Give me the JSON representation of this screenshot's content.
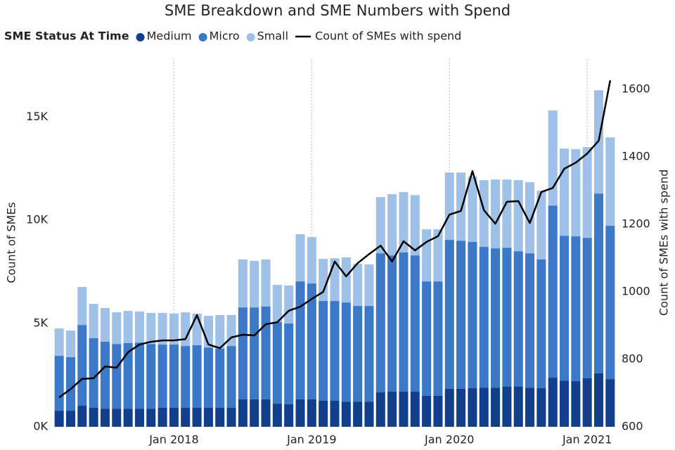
{
  "chart_data": {
    "type": "bar",
    "stacked": true,
    "title": "SME Breakdown and SME Numbers with Spend",
    "legend_title": "SME Status At Time",
    "ylabel": "Count of SMEs",
    "y2label": "Count of SMEs with spend",
    "x": [
      "2017-03",
      "2017-04",
      "2017-05",
      "2017-06",
      "2017-07",
      "2017-08",
      "2017-09",
      "2017-10",
      "2017-11",
      "2017-12",
      "2018-01",
      "2018-02",
      "2018-03",
      "2018-04",
      "2018-05",
      "2018-06",
      "2018-07",
      "2018-08",
      "2018-09",
      "2018-10",
      "2018-11",
      "2018-12",
      "2019-01",
      "2019-02",
      "2019-03",
      "2019-04",
      "2019-05",
      "2019-06",
      "2019-07",
      "2019-08",
      "2019-09",
      "2019-10",
      "2019-11",
      "2019-12",
      "2020-01",
      "2020-02",
      "2020-03",
      "2020-04",
      "2020-05",
      "2020-06",
      "2020-07",
      "2020-08",
      "2020-09",
      "2020-10",
      "2020-11",
      "2020-12",
      "2021-01",
      "2021-02",
      "2021-03"
    ],
    "xticks": [
      {
        "value": "2018-01",
        "label": "Jan 2018"
      },
      {
        "value": "2019-01",
        "label": "Jan 2019"
      },
      {
        "value": "2020-01",
        "label": "Jan 2020"
      },
      {
        "value": "2021-01",
        "label": "Jan 2021"
      }
    ],
    "grid": "x",
    "ylim": [
      0,
      17800
    ],
    "yticks": [
      {
        "value": 0,
        "label": "0K"
      },
      {
        "value": 5000,
        "label": "5K"
      },
      {
        "value": 10000,
        "label": "10K"
      },
      {
        "value": 15000,
        "label": "15K"
      }
    ],
    "y2lim": [
      600,
      1690
    ],
    "y2ticks": [
      600,
      800,
      1000,
      1200,
      1400,
      1600
    ],
    "series": [
      {
        "name": "Medium",
        "color": "#123f8c",
        "values": [
          780,
          780,
          1020,
          920,
          880,
          880,
          880,
          880,
          880,
          920,
          920,
          920,
          920,
          920,
          920,
          920,
          1330,
          1330,
          1330,
          1120,
          1090,
          1330,
          1330,
          1260,
          1260,
          1220,
          1220,
          1220,
          1670,
          1700,
          1700,
          1700,
          1500,
          1500,
          1840,
          1840,
          1870,
          1900,
          1900,
          1940,
          1940,
          1900,
          1870,
          2380,
          2240,
          2210,
          2350,
          2590,
          2310
        ]
      },
      {
        "name": "Micro",
        "color": "#3b78c8",
        "values": [
          2655,
          2590,
          3910,
          3370,
          3240,
          3130,
          3170,
          3200,
          3130,
          3060,
          3060,
          2990,
          3030,
          2920,
          2860,
          2990,
          4450,
          4450,
          4490,
          3950,
          3910,
          5710,
          5610,
          4830,
          4830,
          4800,
          4630,
          4630,
          6730,
          6600,
          6740,
          6600,
          5540,
          5540,
          7210,
          7170,
          7080,
          6810,
          6740,
          6730,
          6560,
          6500,
          6230,
          8330,
          7010,
          7010,
          6800,
          8700,
          7420
        ]
      },
      {
        "name": "Small",
        "color": "#9fc1e7",
        "values": [
          1325,
          1290,
          1840,
          1660,
          1630,
          1530,
          1560,
          1500,
          1500,
          1530,
          1500,
          1630,
          1530,
          1530,
          1630,
          1500,
          2320,
          2250,
          2280,
          1800,
          1840,
          2280,
          2240,
          2040,
          2070,
          2180,
          2040,
          2010,
          2720,
          2960,
          2920,
          2920,
          2520,
          2520,
          3260,
          3300,
          3160,
          3230,
          3330,
          3300,
          3440,
          3440,
          3330,
          4600,
          4220,
          4220,
          4390,
          5000,
          4280
        ]
      },
      {
        "name": "Count of SMEs with spend",
        "color": "#000000",
        "type": "line",
        "axis": "y2",
        "values": [
          687,
          712,
          742,
          744,
          779,
          775,
          821,
          844,
          852,
          856,
          856,
          860,
          931,
          844,
          833,
          865,
          873,
          871,
          904,
          910,
          944,
          956,
          979,
          1000,
          1090,
          1046,
          1085,
          1112,
          1137,
          1090,
          1150,
          1123,
          1148,
          1165,
          1229,
          1240,
          1358,
          1242,
          1202,
          1267,
          1269,
          1204,
          1296,
          1308,
          1365,
          1383,
          1410,
          1448,
          1627
        ]
      }
    ]
  }
}
